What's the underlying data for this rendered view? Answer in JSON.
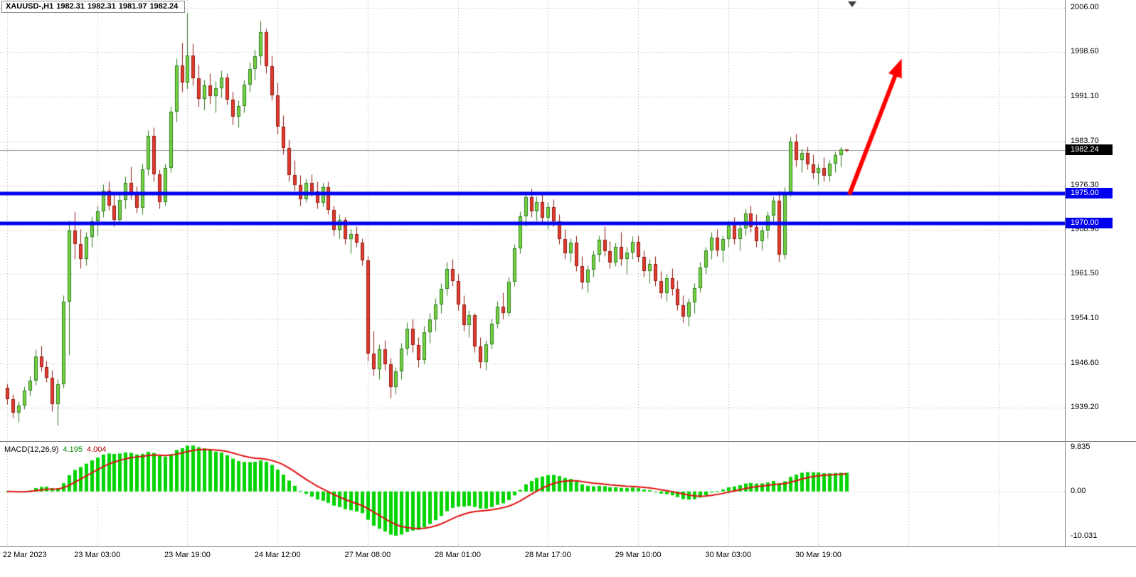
{
  "chart": {
    "title": {
      "symbol_period": "XAUUSD-,H1",
      "open": "1982.31",
      "high": "1982.31",
      "low": "1981.97",
      "close": "1982.24"
    },
    "background": "#ffffff"
  },
  "chart_data": [
    {
      "id": "price-pane",
      "type": "candlestick",
      "symbol": "XAUUSD",
      "timeframe": "H1",
      "ylim": [
        1933.6,
        2007.3
      ],
      "y_ticks": [
        {
          "value": 2006.0,
          "label": "2006.00"
        },
        {
          "value": 1998.6,
          "label": "1998.60"
        },
        {
          "value": 1991.1,
          "label": "1991.10"
        },
        {
          "value": 1983.7,
          "label": "1983.70"
        },
        {
          "value": 1976.3,
          "label": "1976.30"
        },
        {
          "value": 1968.9,
          "label": "1968.90"
        },
        {
          "value": 1961.5,
          "label": "1961.50"
        },
        {
          "value": 1954.1,
          "label": "1954.10"
        },
        {
          "value": 1946.6,
          "label": "1946.60"
        },
        {
          "value": 1939.2,
          "label": "1939.20"
        }
      ],
      "x_tick_labels": [
        {
          "label": "22 Mar 2023",
          "bar": 0
        },
        {
          "label": "23 Mar 03:00",
          "bar": 16
        },
        {
          "label": "23 Mar 19:00",
          "bar": 32
        },
        {
          "label": "24 Mar 12:00",
          "bar": 48
        },
        {
          "label": "27 Mar 08:00",
          "bar": 64
        },
        {
          "label": "28 Mar 01:00",
          "bar": 80
        },
        {
          "label": "28 Mar 17:00",
          "bar": 96
        },
        {
          "label": "29 Mar 10:00",
          "bar": 112
        },
        {
          "label": "30 Mar 03:00",
          "bar": 128
        },
        {
          "label": "30 Mar 19:00",
          "bar": 144
        }
      ],
      "grid_interval_bars": 16,
      "levels": [
        {
          "price": 1975.0,
          "label": "1975.00",
          "color": "#0000f0",
          "width": 5
        },
        {
          "price": 1970.0,
          "label": "1970.00",
          "color": "#0000f0",
          "width": 5
        }
      ],
      "current_price": {
        "value": 1982.24,
        "label": "1982.24",
        "badge_bg": "#000000",
        "badge_fg": "#ffffff"
      },
      "arrow": {
        "from": {
          "bar": 149.5,
          "price": 1974.8
        },
        "to": {
          "bar": 158.8,
          "price": 1997.5
        },
        "color": "#ff0000",
        "width": 6
      },
      "shift_marker_bar": 150,
      "colors": {
        "up_fill": "#74d33f",
        "up_border": "#2c7a1f",
        "down_fill": "#e23b2e",
        "down_border": "#8f1a10",
        "grid": "#a8a8a8",
        "bid_line": "#9a9a9a"
      },
      "candles": [
        [
          1942.5,
          1943.2,
          1939.8,
          1940.6
        ],
        [
          1940.6,
          1941.5,
          1937.5,
          1938.4
        ],
        [
          1938.4,
          1940.2,
          1936.8,
          1939.6
        ],
        [
          1939.6,
          1942.8,
          1939.0,
          1942.0
        ],
        [
          1942.0,
          1944.5,
          1941.2,
          1943.7
        ],
        [
          1943.7,
          1948.9,
          1943.0,
          1947.8
        ],
        [
          1947.8,
          1949.5,
          1945.2,
          1946.0
        ],
        [
          1946.0,
          1947.0,
          1943.5,
          1944.2
        ],
        [
          1944.2,
          1945.5,
          1938.6,
          1939.8
        ],
        [
          1939.8,
          1944.0,
          1936.2,
          1943.1
        ],
        [
          1943.1,
          1958.0,
          1942.5,
          1956.9
        ],
        [
          1956.9,
          1970.5,
          1948.0,
          1968.8
        ],
        [
          1968.8,
          1972.0,
          1964.0,
          1966.5
        ],
        [
          1966.5,
          1969.0,
          1962.5,
          1964.0
        ],
        [
          1964.0,
          1968.5,
          1963.0,
          1967.7
        ],
        [
          1967.7,
          1971.2,
          1966.0,
          1970.3
        ],
        [
          1970.3,
          1973.0,
          1968.0,
          1972.0
        ],
        [
          1972.0,
          1976.5,
          1971.0,
          1975.4
        ],
        [
          1975.4,
          1977.0,
          1972.2,
          1973.0
        ],
        [
          1973.0,
          1975.0,
          1969.5,
          1970.6
        ],
        [
          1970.6,
          1974.8,
          1970.0,
          1973.9
        ],
        [
          1973.9,
          1977.8,
          1972.5,
          1976.8
        ],
        [
          1976.8,
          1979.5,
          1974.0,
          1975.0
        ],
        [
          1975.0,
          1976.2,
          1971.8,
          1972.6
        ],
        [
          1972.6,
          1980.0,
          1971.5,
          1979.0
        ],
        [
          1979.0,
          1985.5,
          1978.0,
          1984.6
        ],
        [
          1984.6,
          1986.0,
          1977.0,
          1978.2
        ],
        [
          1978.2,
          1979.0,
          1972.5,
          1973.6
        ],
        [
          1973.6,
          1980.0,
          1973.0,
          1979.2
        ],
        [
          1979.2,
          1989.5,
          1978.5,
          1988.6
        ],
        [
          1988.6,
          1997.5,
          1987.0,
          1996.4
        ],
        [
          1996.4,
          2000.2,
          1992.0,
          1993.5
        ],
        [
          1993.5,
          2005.2,
          1992.5,
          1998.0
        ],
        [
          1998.0,
          2000.0,
          1993.0,
          1994.2
        ],
        [
          1994.2,
          1996.5,
          1989.5,
          1990.8
        ],
        [
          1990.8,
          1994.0,
          1989.0,
          1993.0
        ],
        [
          1993.0,
          1995.0,
          1990.0,
          1991.2
        ],
        [
          1991.2,
          1993.8,
          1988.5,
          1992.6
        ],
        [
          1992.6,
          1995.5,
          1991.0,
          1994.4
        ],
        [
          1994.4,
          1995.0,
          1989.8,
          1990.6
        ],
        [
          1990.6,
          1992.0,
          1986.5,
          1987.8
        ],
        [
          1987.8,
          1990.5,
          1986.0,
          1989.6
        ],
        [
          1989.6,
          1994.0,
          1988.5,
          1993.2
        ],
        [
          1993.2,
          1997.0,
          1992.0,
          1995.8
        ],
        [
          1995.8,
          1999.0,
          1994.0,
          1997.9
        ],
        [
          1997.9,
          2003.8,
          1996.5,
          2001.9
        ],
        [
          2001.9,
          2002.5,
          1995.0,
          1996.2
        ],
        [
          1996.2,
          1998.0,
          1990.5,
          1991.4
        ],
        [
          1991.4,
          1993.5,
          1985.0,
          1986.2
        ],
        [
          1986.2,
          1988.0,
          1981.5,
          1982.6
        ],
        [
          1982.6,
          1984.0,
          1977.0,
          1978.1
        ],
        [
          1978.1,
          1980.5,
          1975.5,
          1976.4
        ],
        [
          1976.4,
          1978.0,
          1973.0,
          1974.0
        ],
        [
          1974.0,
          1977.5,
          1973.5,
          1976.8
        ],
        [
          1976.8,
          1978.2,
          1974.5,
          1975.3
        ],
        [
          1975.3,
          1977.0,
          1972.5,
          1973.4
        ],
        [
          1973.4,
          1976.8,
          1972.8,
          1976.0
        ],
        [
          1976.0,
          1977.0,
          1971.5,
          1972.2
        ],
        [
          1972.2,
          1973.0,
          1968.0,
          1968.9
        ],
        [
          1968.9,
          1971.5,
          1967.5,
          1970.6
        ],
        [
          1970.6,
          1971.0,
          1966.5,
          1967.3
        ],
        [
          1967.3,
          1969.0,
          1965.0,
          1968.2
        ],
        [
          1968.2,
          1969.5,
          1966.0,
          1966.8
        ],
        [
          1966.8,
          1967.5,
          1963.0,
          1963.8
        ],
        [
          1963.8,
          1964.5,
          1947.0,
          1948.2
        ],
        [
          1948.2,
          1952.0,
          1944.5,
          1945.6
        ],
        [
          1945.6,
          1949.8,
          1944.0,
          1948.9
        ],
        [
          1948.9,
          1950.5,
          1945.5,
          1946.4
        ],
        [
          1946.4,
          1947.5,
          1940.9,
          1942.6
        ],
        [
          1942.6,
          1946.0,
          1941.5,
          1945.2
        ],
        [
          1945.2,
          1950.0,
          1944.0,
          1949.1
        ],
        [
          1949.1,
          1953.5,
          1948.0,
          1952.4
        ],
        [
          1952.4,
          1954.0,
          1948.5,
          1949.6
        ],
        [
          1949.6,
          1951.0,
          1946.0,
          1947.2
        ],
        [
          1947.2,
          1952.8,
          1946.5,
          1951.8
        ],
        [
          1951.8,
          1955.0,
          1950.0,
          1953.9
        ],
        [
          1953.9,
          1957.5,
          1952.0,
          1956.4
        ],
        [
          1956.4,
          1960.0,
          1955.0,
          1959.0
        ],
        [
          1959.0,
          1963.5,
          1958.0,
          1962.4
        ],
        [
          1962.4,
          1964.0,
          1959.5,
          1960.3
        ],
        [
          1960.3,
          1961.5,
          1955.5,
          1956.4
        ],
        [
          1956.4,
          1958.0,
          1952.0,
          1953.0
        ],
        [
          1953.0,
          1955.5,
          1951.0,
          1954.6
        ],
        [
          1954.6,
          1955.0,
          1948.5,
          1949.4
        ],
        [
          1949.4,
          1951.0,
          1945.8,
          1946.8
        ],
        [
          1946.8,
          1950.5,
          1945.5,
          1949.8
        ],
        [
          1949.8,
          1954.0,
          1949.0,
          1953.2
        ],
        [
          1953.2,
          1957.0,
          1952.5,
          1956.1
        ],
        [
          1956.1,
          1958.5,
          1954.0,
          1955.0
        ],
        [
          1955.0,
          1961.0,
          1954.5,
          1960.2
        ],
        [
          1960.2,
          1966.5,
          1959.5,
          1965.8
        ],
        [
          1965.8,
          1972.0,
          1965.0,
          1971.2
        ],
        [
          1971.2,
          1975.3,
          1969.5,
          1974.4
        ],
        [
          1974.4,
          1975.8,
          1971.0,
          1972.0
        ],
        [
          1972.0,
          1974.5,
          1970.5,
          1973.6
        ],
        [
          1973.6,
          1974.8,
          1970.0,
          1970.9
        ],
        [
          1970.9,
          1973.5,
          1969.0,
          1972.7
        ],
        [
          1972.7,
          1974.0,
          1969.5,
          1970.3
        ],
        [
          1970.3,
          1971.5,
          1966.5,
          1967.4
        ],
        [
          1967.4,
          1969.0,
          1964.0,
          1965.0
        ],
        [
          1965.0,
          1967.5,
          1963.5,
          1966.8
        ],
        [
          1966.8,
          1968.0,
          1962.0,
          1962.9
        ],
        [
          1962.9,
          1964.5,
          1959.0,
          1960.1
        ],
        [
          1960.1,
          1963.0,
          1958.5,
          1962.2
        ],
        [
          1962.2,
          1965.5,
          1961.0,
          1964.7
        ],
        [
          1964.7,
          1968.0,
          1963.5,
          1967.2
        ],
        [
          1967.2,
          1969.5,
          1964.5,
          1965.3
        ],
        [
          1965.3,
          1967.0,
          1962.5,
          1963.4
        ],
        [
          1963.4,
          1966.8,
          1962.8,
          1966.0
        ],
        [
          1966.0,
          1968.5,
          1963.0,
          1964.0
        ],
        [
          1964.0,
          1966.0,
          1961.5,
          1965.1
        ],
        [
          1965.1,
          1967.8,
          1964.0,
          1966.9
        ],
        [
          1966.9,
          1968.0,
          1963.5,
          1964.4
        ],
        [
          1964.4,
          1965.5,
          1961.0,
          1962.0
        ],
        [
          1962.0,
          1964.0,
          1960.0,
          1963.2
        ],
        [
          1963.2,
          1964.5,
          1959.5,
          1960.4
        ],
        [
          1960.4,
          1962.0,
          1957.5,
          1958.3
        ],
        [
          1958.3,
          1961.5,
          1957.0,
          1960.8
        ],
        [
          1960.8,
          1962.5,
          1958.0,
          1959.0
        ],
        [
          1959.0,
          1960.5,
          1955.5,
          1956.3
        ],
        [
          1956.3,
          1958.0,
          1953.5,
          1954.4
        ],
        [
          1954.4,
          1957.5,
          1952.8,
          1956.8
        ],
        [
          1956.8,
          1960.0,
          1955.0,
          1959.2
        ],
        [
          1959.2,
          1963.5,
          1958.5,
          1962.6
        ],
        [
          1962.6,
          1966.0,
          1961.5,
          1965.4
        ],
        [
          1965.4,
          1968.5,
          1964.0,
          1967.6
        ],
        [
          1967.6,
          1969.0,
          1964.5,
          1965.5
        ],
        [
          1965.5,
          1968.0,
          1963.5,
          1967.3
        ],
        [
          1967.3,
          1970.5,
          1966.0,
          1969.6
        ],
        [
          1969.6,
          1971.0,
          1966.5,
          1967.4
        ],
        [
          1967.4,
          1970.0,
          1965.5,
          1969.2
        ],
        [
          1969.2,
          1972.5,
          1968.0,
          1971.6
        ],
        [
          1971.6,
          1973.0,
          1968.5,
          1969.4
        ],
        [
          1969.4,
          1971.5,
          1966.0,
          1967.0
        ],
        [
          1967.0,
          1969.5,
          1965.5,
          1968.8
        ],
        [
          1968.8,
          1972.0,
          1967.5,
          1971.3
        ],
        [
          1971.3,
          1974.5,
          1970.0,
          1973.8
        ],
        [
          1973.8,
          1975.5,
          1963.5,
          1964.8
        ],
        [
          1964.8,
          1976.0,
          1964.0,
          1975.2
        ],
        [
          1975.2,
          1984.5,
          1974.5,
          1983.6
        ],
        [
          1983.6,
          1984.9,
          1979.5,
          1980.6
        ],
        [
          1980.6,
          1982.5,
          1978.5,
          1981.8
        ],
        [
          1981.8,
          1982.8,
          1979.0,
          1979.8
        ],
        [
          1979.8,
          1981.5,
          1977.5,
          1978.4
        ],
        [
          1978.4,
          1980.0,
          1976.5,
          1979.3
        ],
        [
          1979.3,
          1981.0,
          1977.0,
          1977.9
        ],
        [
          1977.9,
          1980.5,
          1977.0,
          1980.0
        ],
        [
          1980.0,
          1982.0,
          1978.5,
          1981.4
        ],
        [
          1981.4,
          1982.8,
          1979.5,
          1982.31
        ],
        [
          1982.31,
          1982.31,
          1981.97,
          1982.24
        ]
      ]
    },
    {
      "id": "macd-pane",
      "type": "macd_histogram",
      "label": "MACD(12,26,9)",
      "value_main": "4.195",
      "value_signal": "4.004",
      "params": {
        "fast": 12,
        "slow": 26,
        "signal": 9
      },
      "ylim": [
        -12.3,
        11.1
      ],
      "y_ticks": [
        {
          "value": 9.835,
          "label": "9.835"
        },
        {
          "value": 0,
          "label": "0.00"
        },
        {
          "value": -10.031,
          "label": "-10.031"
        }
      ],
      "colors": {
        "histogram": "#00d400",
        "signal": "#e01010"
      }
    }
  ]
}
